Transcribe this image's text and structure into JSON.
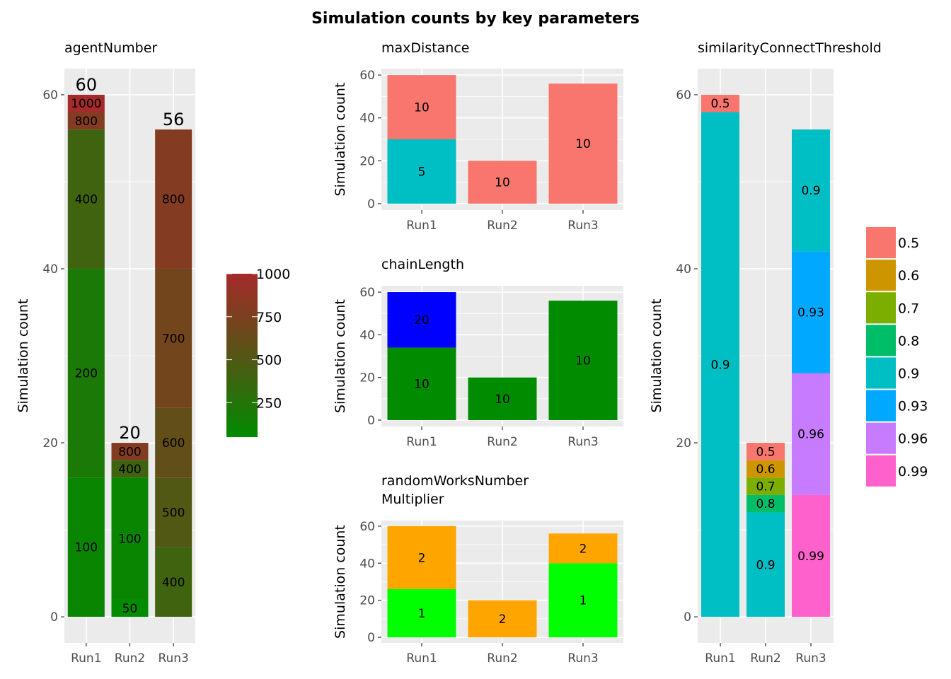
{
  "title": "Simulation counts by key parameters",
  "chart_data": [
    {
      "id": "agentNumber",
      "type": "bar",
      "title": "agentNumber",
      "ylabel": "Simulation count",
      "categories": [
        "Run1",
        "Run2",
        "Run3"
      ],
      "ylim": [
        0,
        60
      ],
      "yticks": [
        0,
        20,
        40,
        60
      ],
      "totals": [
        60,
        20,
        56
      ],
      "stacks": [
        [
          {
            "label": "100",
            "value": 16,
            "param": 100
          },
          {
            "label": "200",
            "value": 24,
            "param": 200
          },
          {
            "label": "400",
            "value": 16,
            "param": 400
          },
          {
            "label": "800",
            "value": 2,
            "param": 800
          },
          {
            "label": "1000",
            "value": 2,
            "param": 1000
          }
        ],
        [
          {
            "label": "50",
            "value": 2,
            "param": 50
          },
          {
            "label": "100",
            "value": 14,
            "param": 100
          },
          {
            "label": "200",
            "value": 0,
            "param": 200
          },
          {
            "label": "400",
            "value": 2,
            "param": 400
          },
          {
            "label": "800",
            "value": 2,
            "param": 800
          }
        ],
        [
          {
            "label": "400",
            "value": 8,
            "param": 400
          },
          {
            "label": "500",
            "value": 8,
            "param": 500
          },
          {
            "label": "600",
            "value": 8,
            "param": 600
          },
          {
            "label": "700",
            "value": 16,
            "param": 700
          },
          {
            "label": "800",
            "value": 16,
            "param": 800
          }
        ]
      ],
      "colorbar": {
        "ticks": [
          250,
          500,
          750,
          1000
        ],
        "range": [
          50,
          1000
        ],
        "low_color": "#008B00",
        "mid_color": "#555515",
        "high_color": "#A52A2A"
      }
    },
    {
      "id": "maxDistance",
      "type": "bar",
      "title": "maxDistance",
      "ylabel": "Simulation count",
      "categories": [
        "Run1",
        "Run2",
        "Run3"
      ],
      "ylim": [
        0,
        60
      ],
      "yticks": [
        0,
        20,
        40,
        60
      ],
      "stacks": [
        [
          {
            "label": "5",
            "value": 30,
            "color": "#00BFC4"
          },
          {
            "label": "10",
            "value": 30,
            "color": "#F8766D"
          }
        ],
        [
          {
            "label": "10",
            "value": 20,
            "color": "#F8766D"
          }
        ],
        [
          {
            "label": "10",
            "value": 56,
            "color": "#F8766D"
          }
        ]
      ]
    },
    {
      "id": "chainLength",
      "type": "bar",
      "title": "chainLength",
      "ylabel": "Simulation count",
      "categories": [
        "Run1",
        "Run2",
        "Run3"
      ],
      "ylim": [
        0,
        60
      ],
      "yticks": [
        0,
        20,
        40,
        60
      ],
      "stacks": [
        [
          {
            "label": "10",
            "value": 34,
            "color": "#008B00"
          },
          {
            "label": "20",
            "value": 26,
            "color": "#0000FF"
          }
        ],
        [
          {
            "label": "10",
            "value": 20,
            "color": "#008B00"
          }
        ],
        [
          {
            "label": "10",
            "value": 56,
            "color": "#008B00"
          }
        ]
      ]
    },
    {
      "id": "randomWorksNumberMultiplier",
      "type": "bar",
      "title": [
        "randomWorksNumber",
        "Multiplier"
      ],
      "ylabel": "Simulation count",
      "categories": [
        "Run1",
        "Run2",
        "Run3"
      ],
      "ylim": [
        0,
        60
      ],
      "yticks": [
        0,
        20,
        40,
        60
      ],
      "stacks": [
        [
          {
            "label": "1",
            "value": 26,
            "color": "#00FF00"
          },
          {
            "label": "2",
            "value": 34,
            "color": "#FFA500"
          }
        ],
        [
          {
            "label": "2",
            "value": 20,
            "color": "#FFA500"
          }
        ],
        [
          {
            "label": "1",
            "value": 40,
            "color": "#00FF00"
          },
          {
            "label": "2",
            "value": 16,
            "color": "#FFA500"
          }
        ]
      ]
    },
    {
      "id": "similarityConnectThreshold",
      "type": "bar",
      "title": "similarityConnectThreshold",
      "ylabel": "Simulation count",
      "categories": [
        "Run1",
        "Run2",
        "Run3"
      ],
      "ylim": [
        0,
        60
      ],
      "yticks": [
        0,
        20,
        40,
        60
      ],
      "stacks": [
        [
          {
            "label": "0.9",
            "value": 58
          },
          {
            "label": "0.5",
            "value": 2
          }
        ],
        [
          {
            "label": "0.9",
            "value": 12
          },
          {
            "label": "0.8",
            "value": 2
          },
          {
            "label": "0.7",
            "value": 2
          },
          {
            "label": "0.6",
            "value": 2
          },
          {
            "label": "0.5",
            "value": 2
          }
        ],
        [
          {
            "label": "0.99",
            "value": 14
          },
          {
            "label": "0.96",
            "value": 14
          },
          {
            "label": "0.93",
            "value": 14
          },
          {
            "label": "0.9",
            "value": 14
          }
        ]
      ],
      "legend": {
        "position": "right",
        "entries": [
          {
            "label": "0.5",
            "color": "#F8766D"
          },
          {
            "label": "0.6",
            "color": "#CD9600"
          },
          {
            "label": "0.7",
            "color": "#7CAE00"
          },
          {
            "label": "0.8",
            "color": "#00BE67"
          },
          {
            "label": "0.9",
            "color": "#00BFC4"
          },
          {
            "label": "0.93",
            "color": "#00A9FF"
          },
          {
            "label": "0.96",
            "color": "#C77CFF"
          },
          {
            "label": "0.99",
            "color": "#FF61CC"
          }
        ]
      }
    }
  ]
}
